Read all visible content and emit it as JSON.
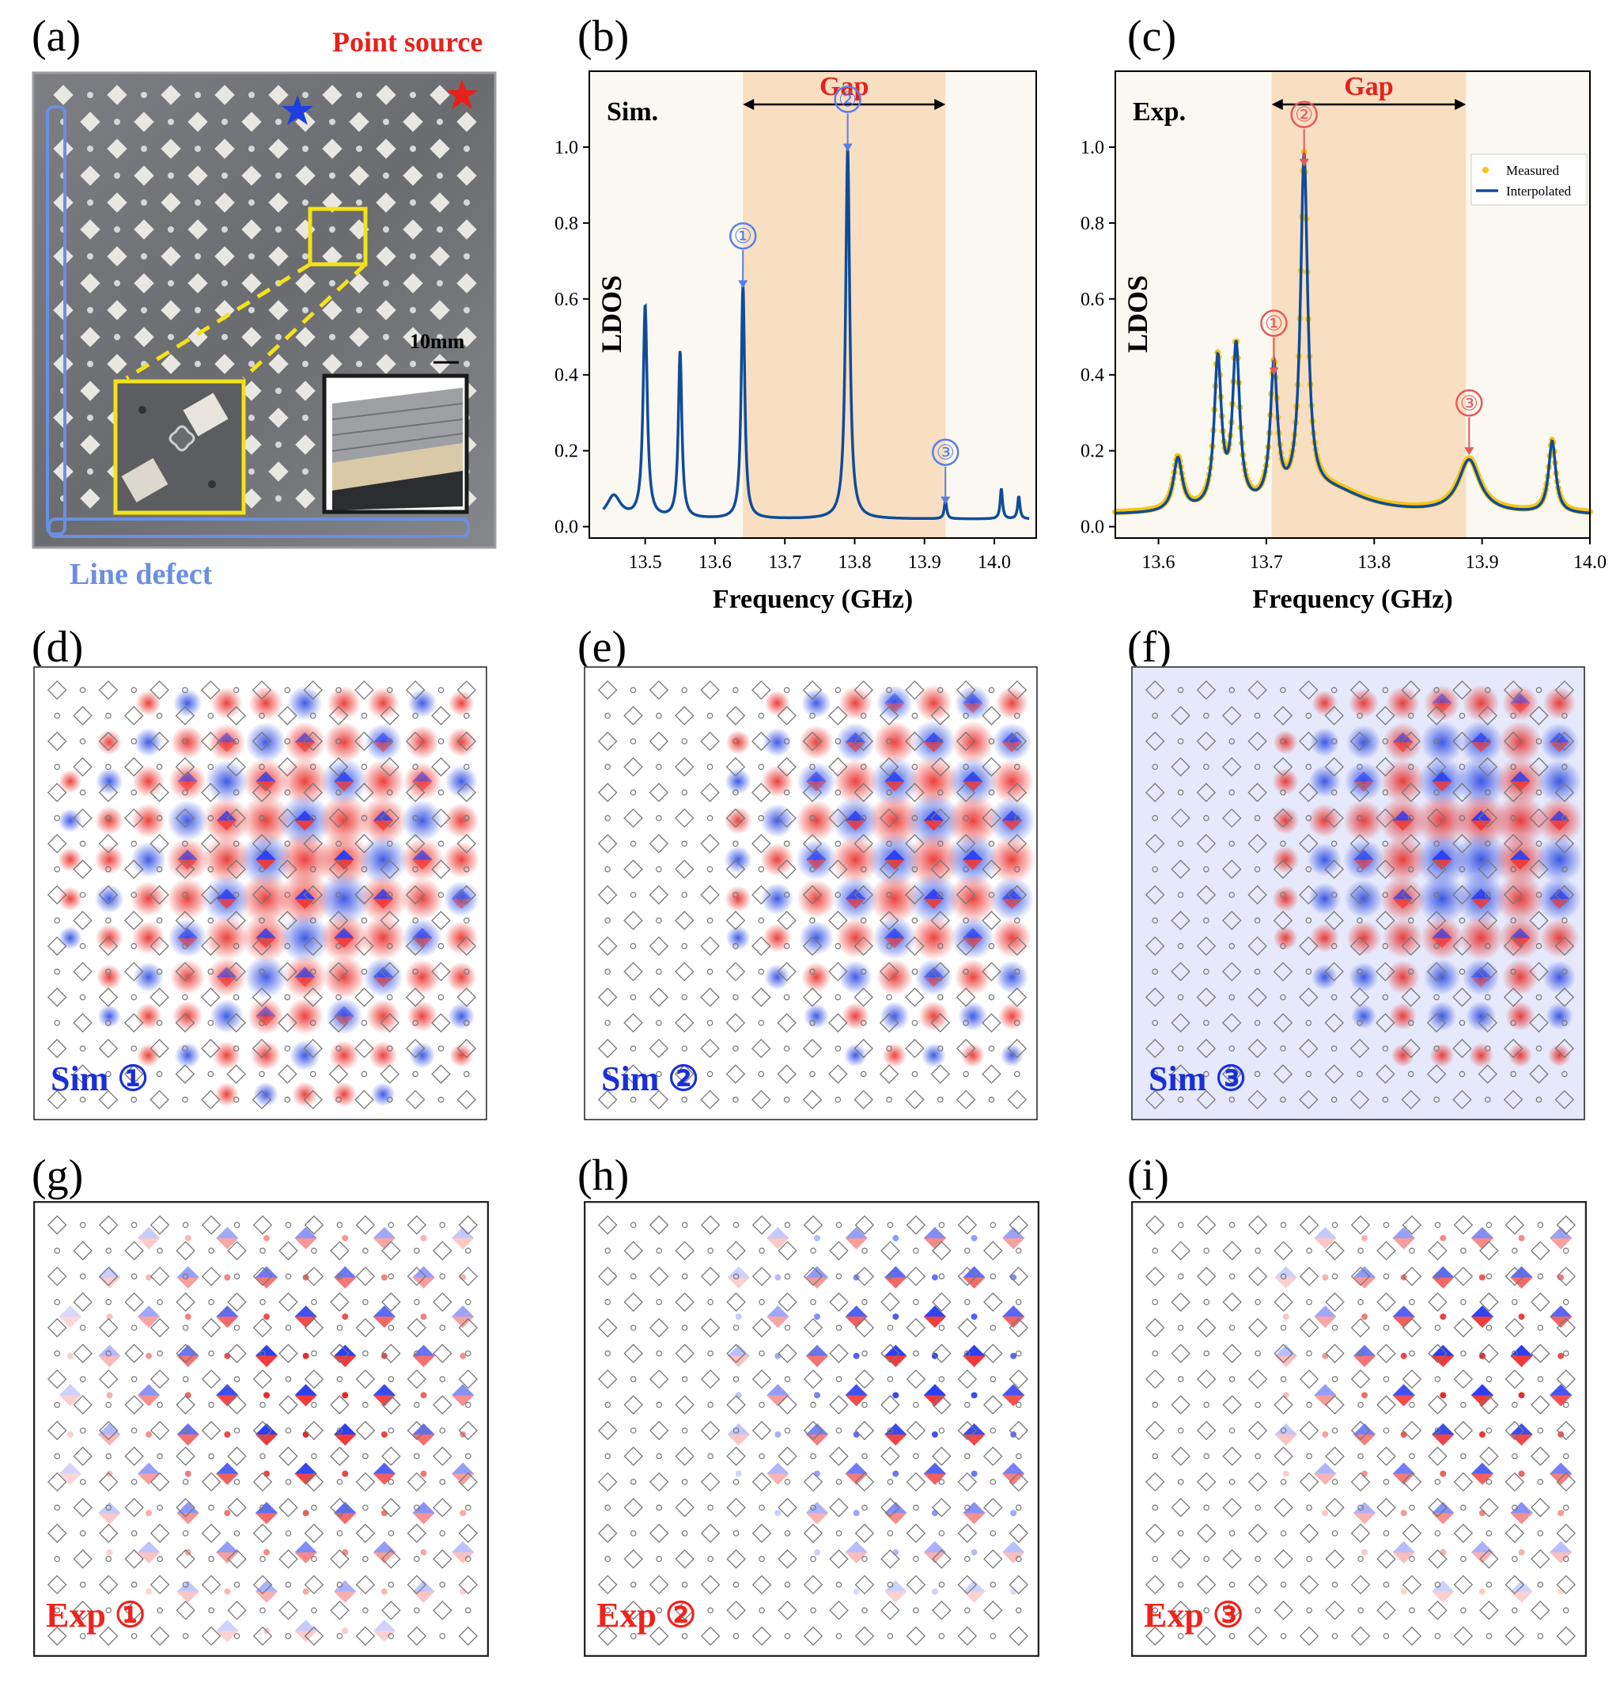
{
  "panel_labels": {
    "a": "(a)",
    "b": "(b)",
    "c": "(c)",
    "d": "(d)",
    "e": "(e)",
    "f": "(f)",
    "g": "(g)",
    "h": "(h)",
    "i": "(i)"
  },
  "panel_a": {
    "point_source": "Point source",
    "line_defect": "Line defect",
    "scale_bar": "10mm",
    "colors": {
      "point_source": "#e8201b",
      "line_defect": "#6b8fe0",
      "zoom_box": "#f3e21a"
    }
  },
  "chart_data": [
    {
      "id": "b",
      "type": "line",
      "title": "Sim.",
      "gap_label": "Gap",
      "gap_range": [
        13.64,
        13.93
      ],
      "xlabel": "Frequency (GHz)",
      "ylabel": "LDOS",
      "xlim": [
        13.42,
        14.06
      ],
      "ylim": [
        -0.03,
        1.2
      ],
      "xticks": [
        13.5,
        13.6,
        13.7,
        13.8,
        13.9,
        14.0
      ],
      "xtick_labels": [
        "13.5",
        "13.6",
        "13.7",
        "13.8",
        "13.9",
        "14.0"
      ],
      "yticks": [
        0.0,
        0.2,
        0.4,
        0.6,
        0.8,
        1.0
      ],
      "ytick_labels": [
        "0.0",
        "0.2",
        "0.4",
        "0.6",
        "0.8",
        "1.0"
      ],
      "baseline": 0.02,
      "x_range": [
        13.44,
        14.05
      ],
      "peaks": [
        {
          "x": 13.455,
          "h": 0.06,
          "w": 0.012
        },
        {
          "x": 13.5,
          "h": 0.56,
          "w": 0.0035
        },
        {
          "x": 13.55,
          "h": 0.44,
          "w": 0.003
        },
        {
          "x": 13.64,
          "h": 0.62,
          "w": 0.003
        },
        {
          "x": 13.79,
          "h": 0.98,
          "w": 0.0035
        },
        {
          "x": 13.93,
          "h": 0.05,
          "w": 0.002
        },
        {
          "x": 14.01,
          "h": 0.08,
          "w": 0.002
        },
        {
          "x": 14.035,
          "h": 0.06,
          "w": 0.002
        }
      ],
      "series_color": "#0f4c9a",
      "annotations": [
        {
          "label": "①",
          "x": 13.64,
          "y": 0.62
        },
        {
          "label": "②",
          "x": 13.79,
          "y": 0.98
        },
        {
          "label": "③",
          "x": 13.93,
          "y": 0.05
        }
      ],
      "annotation_color": "#5b7ee5"
    },
    {
      "id": "c",
      "type": "line",
      "title": "Exp.",
      "gap_label": "Gap",
      "gap_range": [
        13.705,
        13.885
      ],
      "xlabel": "Frequency (GHz)",
      "ylabel": "LDOS",
      "xlim": [
        13.56,
        14.0
      ],
      "ylim": [
        -0.03,
        1.2
      ],
      "xticks": [
        13.6,
        13.7,
        13.8,
        13.9,
        14.0
      ],
      "xtick_labels": [
        "13.6",
        "13.7",
        "13.8",
        "13.9",
        "14.0"
      ],
      "yticks": [
        0.0,
        0.2,
        0.4,
        0.6,
        0.8,
        1.0
      ],
      "ytick_labels": [
        "0.0",
        "0.2",
        "0.4",
        "0.6",
        "0.8",
        "1.0"
      ],
      "baseline": 0.03,
      "x_range": [
        13.56,
        14.0
      ],
      "peaks": [
        {
          "x": 13.618,
          "h": 0.14,
          "w": 0.005
        },
        {
          "x": 13.655,
          "h": 0.39,
          "w": 0.004
        },
        {
          "x": 13.672,
          "h": 0.42,
          "w": 0.004
        },
        {
          "x": 13.707,
          "h": 0.36,
          "w": 0.004
        },
        {
          "x": 13.735,
          "h": 0.9,
          "w": 0.004
        },
        {
          "x": 13.76,
          "h": 0.06,
          "w": 0.04
        },
        {
          "x": 13.888,
          "h": 0.14,
          "w": 0.012
        },
        {
          "x": 13.965,
          "h": 0.19,
          "w": 0.004
        }
      ],
      "series": [
        {
          "name": "Measured",
          "color": "#f5c518"
        },
        {
          "name": "Interpolated",
          "color": "#0f4c9a"
        }
      ],
      "legend_position": "right",
      "annotations": [
        {
          "label": "①",
          "x": 13.707,
          "y": 0.39
        },
        {
          "label": "②",
          "x": 13.735,
          "y": 0.94
        },
        {
          "label": "③",
          "x": 13.888,
          "y": 0.18
        }
      ],
      "annotation_color": "#e45a5a"
    }
  ],
  "field_maps": {
    "sim": [
      {
        "id": "d",
        "label": "Sim ①",
        "mode": 1
      },
      {
        "id": "e",
        "label": "Sim ②",
        "mode": 2
      },
      {
        "id": "f",
        "label": "Sim ③",
        "mode": 3
      }
    ],
    "exp": [
      {
        "id": "g",
        "label": "Exp ①",
        "mode": 1
      },
      {
        "id": "h",
        "label": "Exp ②",
        "mode": 2
      },
      {
        "id": "i",
        "label": "Exp ③",
        "mode": 3
      }
    ],
    "sim_label_color": "#1b2fd6",
    "exp_label_color": "#f0221b"
  }
}
